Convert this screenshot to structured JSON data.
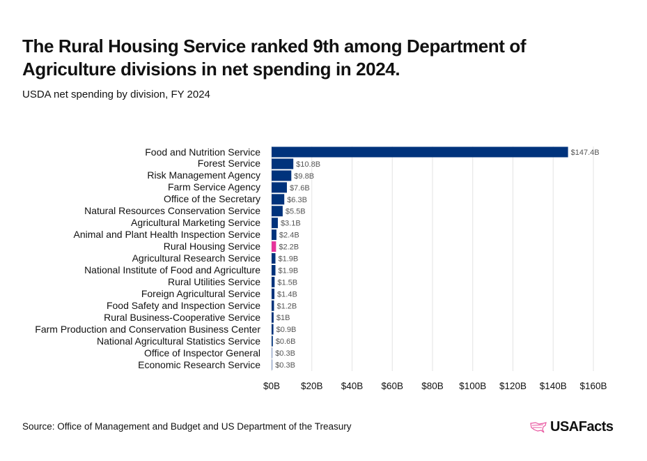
{
  "title": "The Rural Housing Service ranked 9th among Department of Agriculture divisions in net spending in 2024.",
  "subtitle": "USDA net spending by division, FY 2024",
  "source": "Source: Office of Management and Budget and US Department of the Treasury",
  "logo": {
    "text": "USAFacts",
    "icon": "us-map-outline-icon",
    "color": "#e8559f"
  },
  "chart_data": {
    "type": "bar",
    "orientation": "horizontal",
    "categories": [
      "Food and Nutrition Service",
      "Forest Service",
      "Risk Management Agency",
      "Farm Service Agency",
      "Office of the Secretary",
      "Natural Resources Conservation Service",
      "Agricultural Marketing Service",
      "Animal and Plant Health Inspection Service",
      "Rural Housing Service",
      "Agricultural Research Service",
      "National Institute of Food and Agriculture",
      "Rural Utilities Service",
      "Foreign Agricultural Service",
      "Food Safety and Inspection Service",
      "Rural Business-Cooperative Service",
      "Farm Production and Conservation Business Center",
      "National Agricultural Statistics Service",
      "Office of Inspector General",
      "Economic Research Service"
    ],
    "values": [
      147.4,
      10.8,
      9.8,
      7.6,
      6.3,
      5.5,
      3.1,
      2.4,
      2.2,
      1.9,
      1.9,
      1.5,
      1.4,
      1.2,
      1.0,
      0.9,
      0.6,
      0.3,
      0.3
    ],
    "data_labels": [
      "$147.4B",
      "$10.8B",
      "$9.8B",
      "$7.6B",
      "$6.3B",
      "$5.5B",
      "$3.1B",
      "$2.4B",
      "$2.2B",
      "$1.9B",
      "$1.9B",
      "$1.5B",
      "$1.4B",
      "$1.2B",
      "$1B",
      "$0.9B",
      "$0.6B",
      "$0.3B",
      "$0.3B"
    ],
    "highlight": "Rural Housing Service",
    "xlim": [
      0,
      160
    ],
    "xticks": [
      0,
      20,
      40,
      60,
      80,
      100,
      120,
      140,
      160
    ],
    "xtick_labels": [
      "$0B",
      "$20B",
      "$40B",
      "$60B",
      "$80B",
      "$100B",
      "$120B",
      "$140B",
      "$160B"
    ],
    "grid": "vertical",
    "colors": {
      "bar": "#00337c",
      "highlight": "#e5339b",
      "small_bar": "#8aa0c8",
      "grid": "#e3e3e3",
      "label": "#555555"
    }
  }
}
